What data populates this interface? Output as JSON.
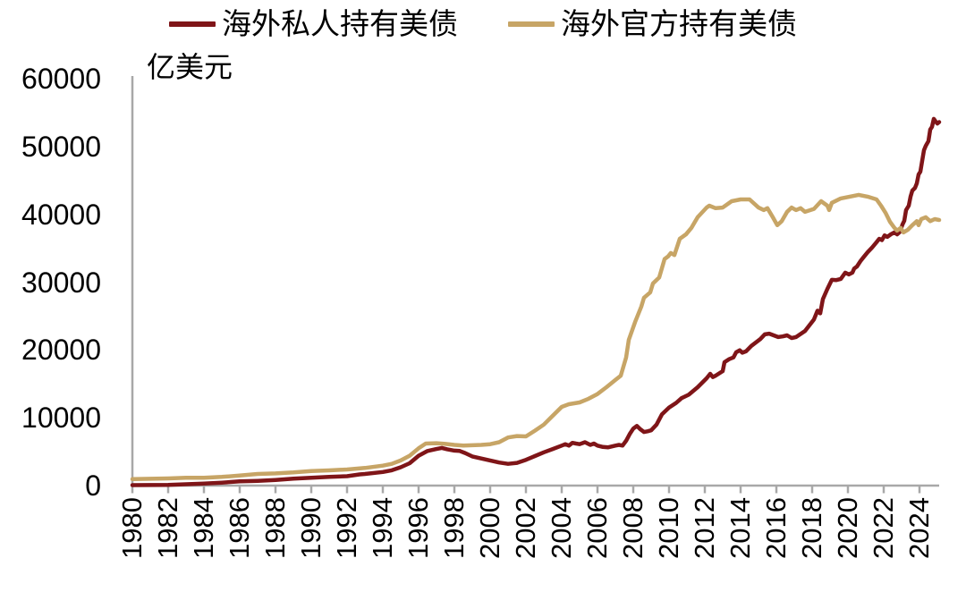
{
  "chart_data": {
    "type": "line",
    "title": "",
    "unit_label": "亿美元",
    "legend_position": "top-center",
    "grid": false,
    "axis_color": "#a8a8a8",
    "text_color": "#000000",
    "xlim": [
      1980,
      2025.2
    ],
    "ylim": [
      0,
      60000
    ],
    "y_ticks": [
      0,
      10000,
      20000,
      30000,
      40000,
      50000,
      60000
    ],
    "x_ticks": [
      1980,
      1982,
      1984,
      1986,
      1988,
      1990,
      1992,
      1994,
      1996,
      1998,
      2000,
      2002,
      2004,
      2006,
      2008,
      2010,
      2012,
      2014,
      2016,
      2018,
      2020,
      2022,
      2024
    ],
    "series": [
      {
        "name": "海外私人持有美债",
        "color": "#7f1518",
        "points": [
          [
            1980,
            60
          ],
          [
            1981,
            80
          ],
          [
            1982,
            110
          ],
          [
            1983,
            200
          ],
          [
            1984,
            300
          ],
          [
            1985,
            430
          ],
          [
            1986,
            620
          ],
          [
            1987,
            700
          ],
          [
            1988,
            830
          ],
          [
            1989,
            1020
          ],
          [
            1990,
            1150
          ],
          [
            1991,
            1280
          ],
          [
            1992,
            1380
          ],
          [
            1992.7,
            1650
          ],
          [
            1993,
            1720
          ],
          [
            1994,
            2000
          ],
          [
            1994.5,
            2250
          ],
          [
            1995,
            2700
          ],
          [
            1995.5,
            3300
          ],
          [
            1996,
            4400
          ],
          [
            1996.5,
            5100
          ],
          [
            1997,
            5400
          ],
          [
            1997.3,
            5550
          ],
          [
            1997.6,
            5350
          ],
          [
            1998,
            5150
          ],
          [
            1998.3,
            5100
          ],
          [
            1998.6,
            4800
          ],
          [
            1999,
            4300
          ],
          [
            1999.5,
            4000
          ],
          [
            2000,
            3700
          ],
          [
            2000.5,
            3400
          ],
          [
            2001,
            3200
          ],
          [
            2001.5,
            3350
          ],
          [
            2002,
            3800
          ],
          [
            2002.5,
            4350
          ],
          [
            2003,
            4900
          ],
          [
            2003.5,
            5400
          ],
          [
            2004,
            5900
          ],
          [
            2004.2,
            6100
          ],
          [
            2004.4,
            5900
          ],
          [
            2004.6,
            6300
          ],
          [
            2004.8,
            6200
          ],
          [
            2005,
            6100
          ],
          [
            2005.3,
            6400
          ],
          [
            2005.6,
            6000
          ],
          [
            2005.8,
            6200
          ],
          [
            2006,
            5900
          ],
          [
            2006.3,
            5700
          ],
          [
            2006.6,
            5650
          ],
          [
            2007,
            5900
          ],
          [
            2007.2,
            6000
          ],
          [
            2007.4,
            5900
          ],
          [
            2007.6,
            6600
          ],
          [
            2007.8,
            7600
          ],
          [
            2008,
            8400
          ],
          [
            2008.2,
            8800
          ],
          [
            2008.4,
            8300
          ],
          [
            2008.6,
            7900
          ],
          [
            2008.8,
            8000
          ],
          [
            2009,
            8150
          ],
          [
            2009.3,
            9000
          ],
          [
            2009.6,
            10500
          ],
          [
            2010,
            11500
          ],
          [
            2010.4,
            12200
          ],
          [
            2010.7,
            12900
          ],
          [
            2011.1,
            13400
          ],
          [
            2011.6,
            14500
          ],
          [
            2012.1,
            15820
          ],
          [
            2012.3,
            16480
          ],
          [
            2012.45,
            16000
          ],
          [
            2012.6,
            16200
          ],
          [
            2013,
            16880
          ],
          [
            2013.1,
            18200
          ],
          [
            2013.35,
            18630
          ],
          [
            2013.6,
            18900
          ],
          [
            2013.75,
            19650
          ],
          [
            2013.95,
            19950
          ],
          [
            2014.1,
            19600
          ],
          [
            2014.3,
            19800
          ],
          [
            2014.6,
            20600
          ],
          [
            2015.1,
            21600
          ],
          [
            2015.35,
            22300
          ],
          [
            2015.6,
            22400
          ],
          [
            2015.85,
            22160
          ],
          [
            2016.1,
            21900
          ],
          [
            2016.35,
            22000
          ],
          [
            2016.6,
            22160
          ],
          [
            2016.85,
            21760
          ],
          [
            2017.1,
            21900
          ],
          [
            2017.6,
            22800
          ],
          [
            2018.1,
            24500
          ],
          [
            2018.3,
            25800
          ],
          [
            2018.45,
            25400
          ],
          [
            2018.6,
            27500
          ],
          [
            2018.85,
            29000
          ],
          [
            2019.1,
            30340
          ],
          [
            2019.35,
            30300
          ],
          [
            2019.6,
            30470
          ],
          [
            2019.85,
            31400
          ],
          [
            2020.05,
            31130
          ],
          [
            2020.25,
            31400
          ],
          [
            2020.35,
            32000
          ],
          [
            2020.5,
            32300
          ],
          [
            2020.7,
            33100
          ],
          [
            2020.85,
            33600
          ],
          [
            2021.1,
            34400
          ],
          [
            2021.35,
            35100
          ],
          [
            2021.6,
            35900
          ],
          [
            2021.75,
            36400
          ],
          [
            2021.9,
            36200
          ],
          [
            2022.05,
            36900
          ],
          [
            2022.2,
            36670
          ],
          [
            2022.4,
            37060
          ],
          [
            2022.6,
            37330
          ],
          [
            2022.75,
            37060
          ],
          [
            2022.9,
            37400
          ],
          [
            2023.05,
            38500
          ],
          [
            2023.15,
            39040
          ],
          [
            2023.25,
            40630
          ],
          [
            2023.4,
            41280
          ],
          [
            2023.5,
            42600
          ],
          [
            2023.6,
            43500
          ],
          [
            2023.75,
            43900
          ],
          [
            2023.85,
            44560
          ],
          [
            2023.95,
            45880
          ],
          [
            2024.05,
            46300
          ],
          [
            2024.15,
            47880
          ],
          [
            2024.25,
            49450
          ],
          [
            2024.35,
            50100
          ],
          [
            2024.5,
            50800
          ],
          [
            2024.6,
            52500
          ],
          [
            2024.7,
            52900
          ],
          [
            2024.8,
            54080
          ],
          [
            2024.9,
            53700
          ],
          [
            2025,
            53400
          ],
          [
            2025.1,
            53600
          ]
        ]
      },
      {
        "name": "海外官方持有美债",
        "color": "#c7a566",
        "points": [
          [
            1980,
            950
          ],
          [
            1981,
            1000
          ],
          [
            1982,
            1050
          ],
          [
            1983,
            1150
          ],
          [
            1984,
            1160
          ],
          [
            1985,
            1280
          ],
          [
            1986,
            1490
          ],
          [
            1987,
            1715
          ],
          [
            1988,
            1800
          ],
          [
            1989,
            1940
          ],
          [
            1990,
            2150
          ],
          [
            1991,
            2240
          ],
          [
            1992,
            2370
          ],
          [
            1993,
            2600
          ],
          [
            1994,
            2940
          ],
          [
            1994.5,
            3200
          ],
          [
            1995,
            3700
          ],
          [
            1995.5,
            4400
          ],
          [
            1996,
            5500
          ],
          [
            1996.4,
            6200
          ],
          [
            1997,
            6250
          ],
          [
            1997.5,
            6150
          ],
          [
            1998,
            6000
          ],
          [
            1998.5,
            5900
          ],
          [
            1999,
            5950
          ],
          [
            1999.5,
            6000
          ],
          [
            2000,
            6100
          ],
          [
            2000.5,
            6400
          ],
          [
            2001,
            7100
          ],
          [
            2001.5,
            7300
          ],
          [
            2002,
            7250
          ],
          [
            2002.5,
            8100
          ],
          [
            2003,
            9000
          ],
          [
            2003.5,
            10300
          ],
          [
            2004,
            11600
          ],
          [
            2004.4,
            12000
          ],
          [
            2005,
            12270
          ],
          [
            2005.5,
            12800
          ],
          [
            2006,
            13500
          ],
          [
            2006.5,
            14500
          ],
          [
            2007,
            15570
          ],
          [
            2007.3,
            16200
          ],
          [
            2007.6,
            18900
          ],
          [
            2007.75,
            21500
          ],
          [
            2008.1,
            24100
          ],
          [
            2008.45,
            26400
          ],
          [
            2008.6,
            27700
          ],
          [
            2008.95,
            28500
          ],
          [
            2009.1,
            29800
          ],
          [
            2009.45,
            30700
          ],
          [
            2009.75,
            33400
          ],
          [
            2009.95,
            33800
          ],
          [
            2010.1,
            34300
          ],
          [
            2010.3,
            34000
          ],
          [
            2010.6,
            36400
          ],
          [
            2010.95,
            37060
          ],
          [
            2011.25,
            38000
          ],
          [
            2011.6,
            39570
          ],
          [
            2012.1,
            41000
          ],
          [
            2012.25,
            41280
          ],
          [
            2012.6,
            40900
          ],
          [
            2013,
            41000
          ],
          [
            2013.5,
            41940
          ],
          [
            2014,
            42200
          ],
          [
            2014.5,
            42200
          ],
          [
            2015,
            41000
          ],
          [
            2015.3,
            40630
          ],
          [
            2015.5,
            40900
          ],
          [
            2015.8,
            39570
          ],
          [
            2016.05,
            38400
          ],
          [
            2016.3,
            39000
          ],
          [
            2016.6,
            40370
          ],
          [
            2016.85,
            41000
          ],
          [
            2017.1,
            40630
          ],
          [
            2017.35,
            40900
          ],
          [
            2017.6,
            40370
          ],
          [
            2018.1,
            40800
          ],
          [
            2018.5,
            41940
          ],
          [
            2018.85,
            41280
          ],
          [
            2018.95,
            40630
          ],
          [
            2019.1,
            41700
          ],
          [
            2019.6,
            42340
          ],
          [
            2020.1,
            42600
          ],
          [
            2020.6,
            42870
          ],
          [
            2021.1,
            42600
          ],
          [
            2021.6,
            42200
          ],
          [
            2021.85,
            41280
          ],
          [
            2022.1,
            40230
          ],
          [
            2022.35,
            38900
          ],
          [
            2022.6,
            38000
          ],
          [
            2022.75,
            37590
          ],
          [
            2022.95,
            38000
          ],
          [
            2023.1,
            37330
          ],
          [
            2023.35,
            37730
          ],
          [
            2023.6,
            38400
          ],
          [
            2023.85,
            39000
          ],
          [
            2023.95,
            38400
          ],
          [
            2024.1,
            39300
          ],
          [
            2024.35,
            39570
          ],
          [
            2024.6,
            39000
          ],
          [
            2024.85,
            39300
          ],
          [
            2025.1,
            39170
          ]
        ]
      }
    ]
  }
}
